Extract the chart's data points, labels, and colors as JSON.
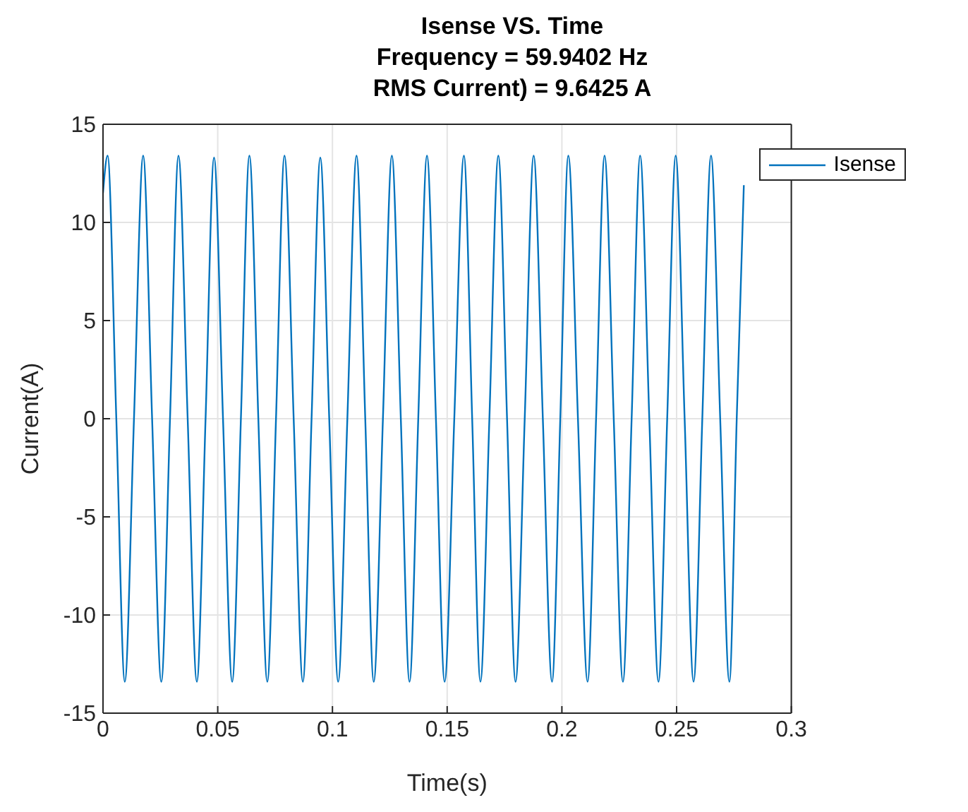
{
  "chart_data": {
    "type": "line",
    "title": "Isense VS. Time",
    "subtitle": "Frequency = 59.9402 Hz\nRMS Current) = 9.6425 A",
    "xlabel": "Time(s)",
    "ylabel": "Current(A)",
    "xlim": [
      0,
      0.3
    ],
    "xticks": [
      0,
      0.05,
      0.1,
      0.15,
      0.2,
      0.25,
      0.3
    ],
    "ylim": [
      -15,
      15
    ],
    "yticks": [
      -15,
      -10,
      -5,
      0,
      5,
      10,
      15
    ],
    "grid": true,
    "legend": "top right",
    "marker": "none",
    "line_style": "solid",
    "series": [
      {
        "name": "Isense",
        "color": "#0072bd",
        "x": [
          0,
          0.002,
          0.0058,
          0.0095,
          0.0135,
          0.0175,
          0.0214,
          0.0254,
          0.0292,
          0.0329,
          0.0369,
          0.0409,
          0.0447,
          0.0484,
          0.0523,
          0.0563,
          0.0601,
          0.0638,
          0.0677,
          0.0716,
          0.0754,
          0.0791,
          0.0831,
          0.0871,
          0.0909,
          0.0947,
          0.0986,
          0.1025,
          0.1065,
          0.1105,
          0.1143,
          0.118,
          0.122,
          0.1259,
          0.1298,
          0.1336,
          0.1374,
          0.1412,
          0.1451,
          0.1489,
          0.1531,
          0.1573,
          0.1609,
          0.1645,
          0.1684,
          0.1723,
          0.1761,
          0.1798,
          0.1838,
          0.1877,
          0.1917,
          0.1957,
          0.1993,
          0.2028,
          0.207,
          0.2112,
          0.2149,
          0.2186,
          0.2226,
          0.2266,
          0.2304,
          0.2341,
          0.2381,
          0.2421,
          0.2459,
          0.2496,
          0.2535,
          0.2574,
          0.2612,
          0.265,
          0.269,
          0.273,
          0.2762,
          0.2793
        ],
        "values": [
          11.5,
          13.4,
          0,
          -13.4,
          0,
          13.4,
          0,
          -13.4,
          0,
          13.4,
          0,
          -13.4,
          0,
          13.3,
          0,
          -13.4,
          0,
          13.4,
          0,
          -13.4,
          0,
          13.4,
          0,
          -13.4,
          0,
          13.3,
          0,
          -13.4,
          0,
          13.4,
          0,
          -13.4,
          0,
          13.4,
          0,
          -13.4,
          0,
          13.4,
          0,
          -13.4,
          0,
          13.4,
          0,
          -13.4,
          0,
          13.4,
          0,
          -13.4,
          0,
          13.4,
          0,
          -13.4,
          0,
          13.4,
          0,
          -13.4,
          0,
          13.4,
          0,
          -13.4,
          0,
          13.4,
          0,
          -13.4,
          0,
          13.4,
          0,
          -13.4,
          0,
          13.4,
          0,
          -13.4,
          0,
          11.9
        ]
      }
    ]
  }
}
